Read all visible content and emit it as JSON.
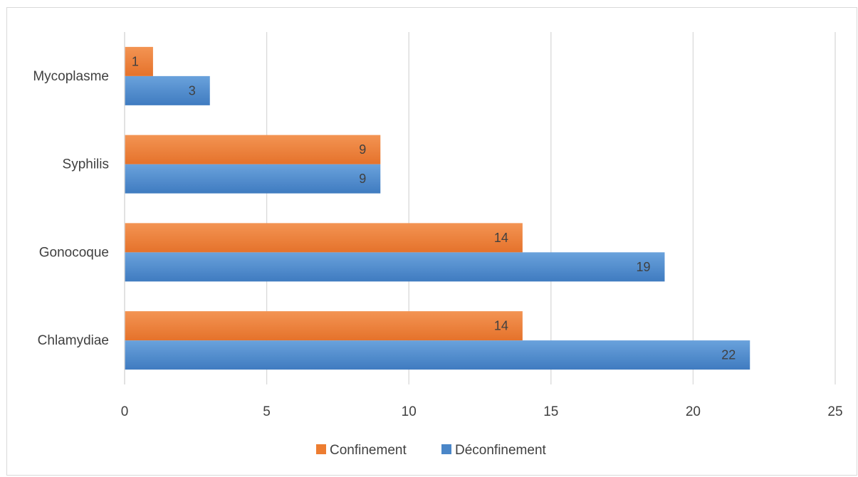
{
  "chart_data": {
    "type": "bar",
    "orientation": "horizontal",
    "title": "",
    "xlabel": "",
    "ylabel": "",
    "categories": [
      "Chlamydiae",
      "Gonocoque",
      "Syphilis",
      "Mycoplasme"
    ],
    "series": [
      {
        "name": "Déconfinement",
        "values": [
          22,
          19,
          9,
          3
        ],
        "color": "#4a86c8"
      },
      {
        "name": "Confinement",
        "values": [
          14,
          14,
          9,
          1
        ],
        "color": "#ed7d31"
      }
    ],
    "xlim": [
      0,
      25
    ],
    "ticks": [
      "0",
      "5",
      "10",
      "15",
      "20",
      "25"
    ],
    "data_labels": true,
    "grid": "vertical",
    "legend": {
      "position": "bottom",
      "entries": [
        {
          "label": "Confinement",
          "color": "#ed7d31"
        },
        {
          "label": "Déconfinement",
          "color": "#4a86c8"
        }
      ]
    }
  }
}
